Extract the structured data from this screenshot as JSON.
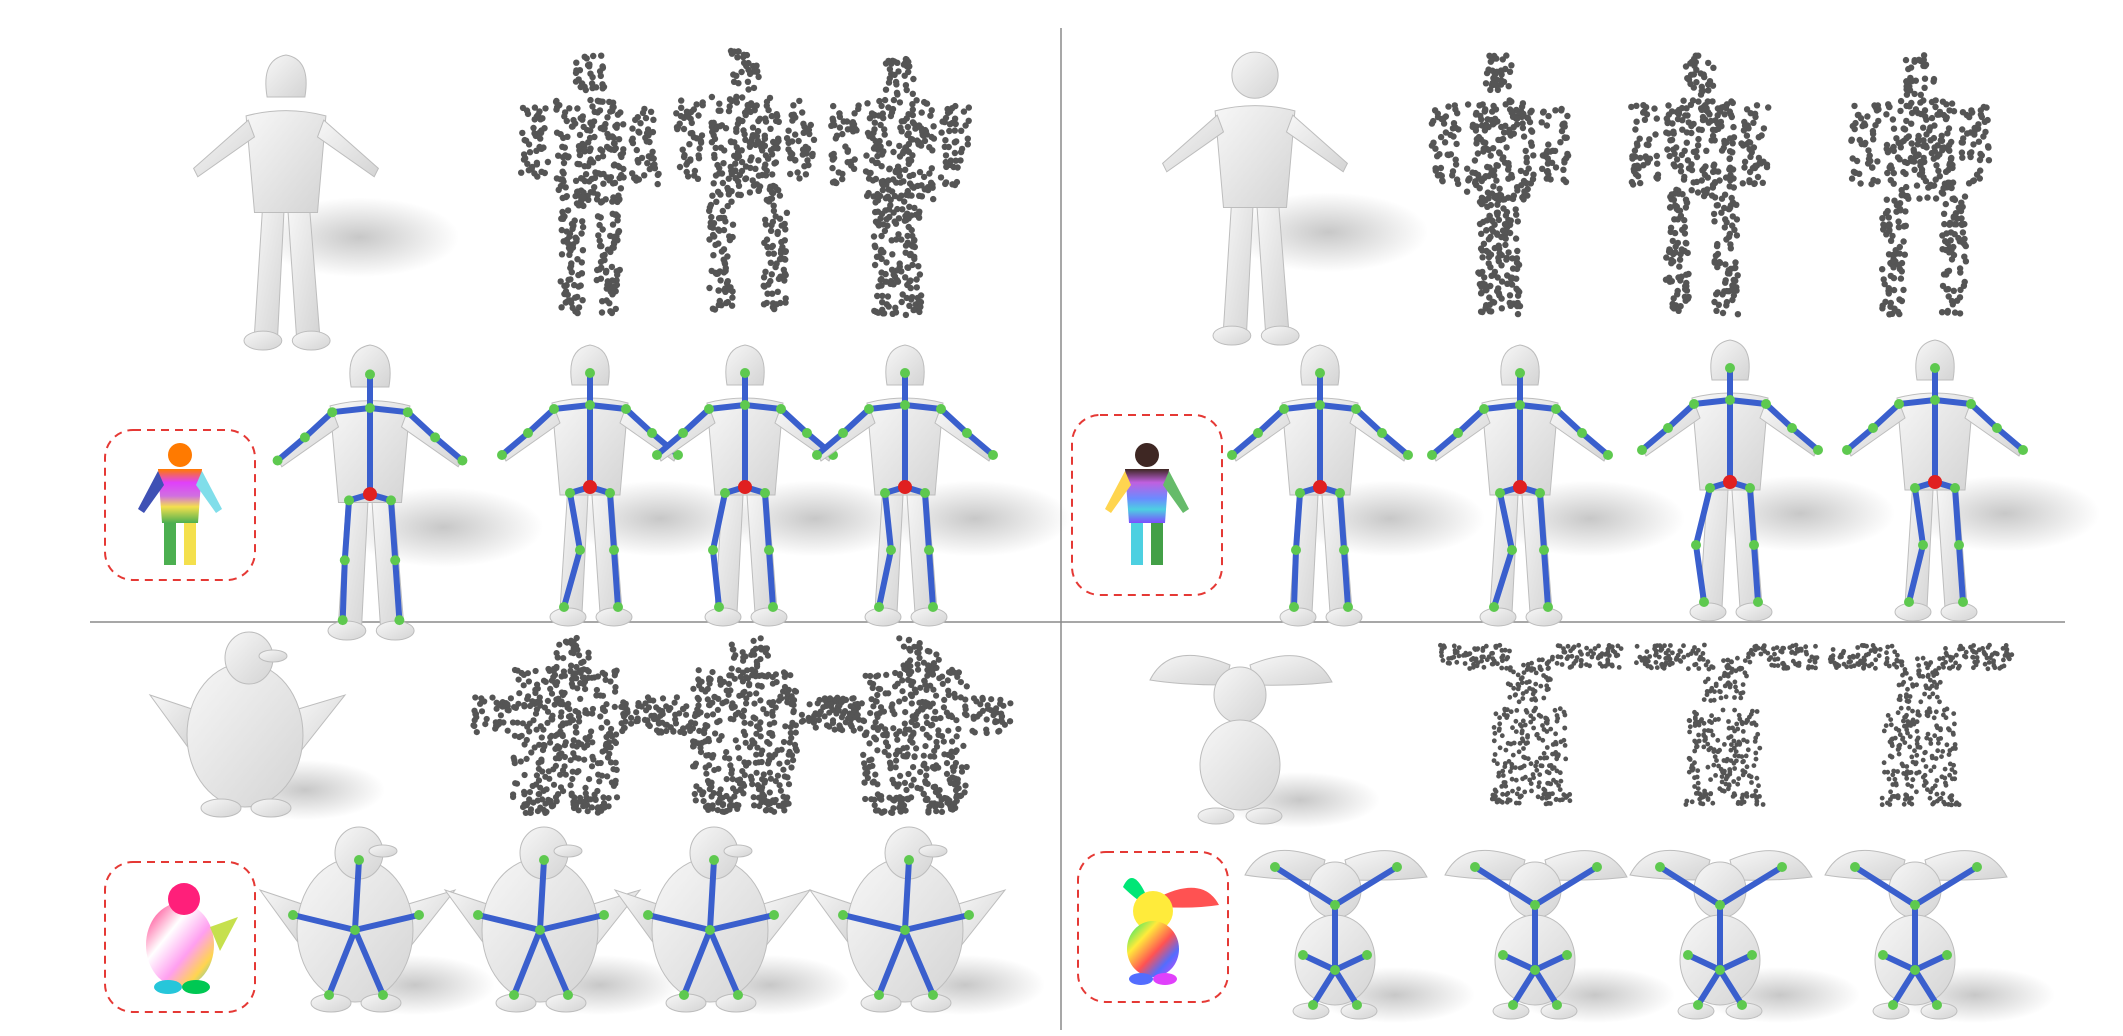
{
  "figure": {
    "panels": [
      {
        "id": "human-1",
        "subject": "humanoid",
        "colored_inset": "segmented-humanoid",
        "point_clouds": 3,
        "skeleton_poses": 4
      },
      {
        "id": "human-2",
        "subject": "humanoid",
        "colored_inset": "segmented-humanoid",
        "point_clouds": 3,
        "skeleton_poses": 4
      },
      {
        "id": "penguin",
        "subject": "penguin",
        "colored_inset": "segmented-penguin",
        "point_clouds": 3,
        "skeleton_poses": 4
      },
      {
        "id": "rabbit",
        "subject": "rabbit",
        "colored_inset": "segmented-rabbit",
        "point_clouds": 3,
        "skeleton_poses": 4
      }
    ],
    "colors": {
      "mesh": "#e6e6e6",
      "mesh_shadow": "#cfcfcf",
      "points": "#555555",
      "bone": "#3a5fcd",
      "joint": "#5ec94f",
      "root_joint": "#e02020",
      "inset_border": "#e53935",
      "divider": "#8a8a8a"
    }
  }
}
